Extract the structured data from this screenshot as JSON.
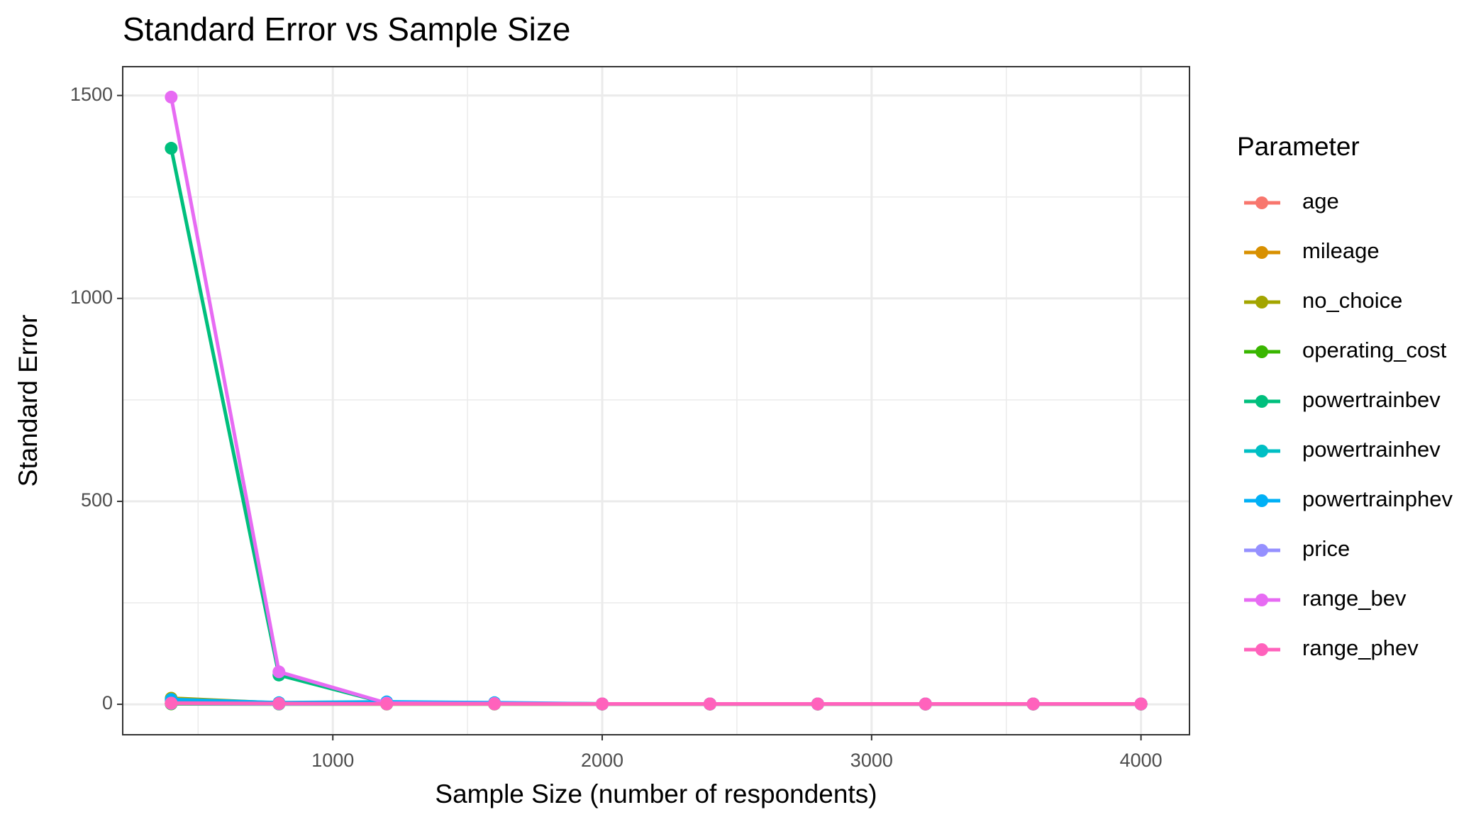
{
  "chart_data": {
    "type": "line",
    "title": "Standard Error vs Sample Size",
    "x_label": "Sample Size (number of respondents)",
    "y_label": "Standard Error",
    "legend_title": "Parameter",
    "legend_position": "right",
    "grid": true,
    "x": [
      400,
      800,
      1200,
      1600,
      2000,
      2400,
      2800,
      3200,
      3600,
      4000
    ],
    "xlim": [
      220,
      4180
    ],
    "xticks": [
      1000,
      2000,
      3000,
      4000
    ],
    "xminor": [
      500,
      1500,
      2500,
      3500
    ],
    "ylim": [
      -75,
      1571
    ],
    "yticks": [
      0,
      500,
      1000,
      1500
    ],
    "yminor": [
      250,
      750,
      1250
    ],
    "series": [
      {
        "name": "age",
        "color": "#F8766D",
        "values": [
          2,
          1,
          1,
          1,
          0.5,
          0.5,
          0.5,
          0.5,
          0.5,
          0.5
        ]
      },
      {
        "name": "mileage",
        "color": "#D89000",
        "values": [
          3,
          1,
          1,
          1,
          0.5,
          0.5,
          0.5,
          0.5,
          0.5,
          0.5
        ]
      },
      {
        "name": "no_choice",
        "color": "#A3A500",
        "values": [
          15,
          3,
          2,
          2,
          1,
          1,
          1,
          1,
          1,
          1
        ]
      },
      {
        "name": "operating_cost",
        "color": "#39B600",
        "values": [
          1,
          0.5,
          0.5,
          0.5,
          0.5,
          0.5,
          0.5,
          0.5,
          0.5,
          0.5
        ]
      },
      {
        "name": "powertrainbev",
        "color": "#00BF7D",
        "values": [
          1370,
          72,
          3,
          2,
          1,
          1,
          1,
          1,
          1,
          1
        ]
      },
      {
        "name": "powertrainhev",
        "color": "#00BFC4",
        "values": [
          8,
          3,
          2,
          2,
          1,
          1,
          1,
          1,
          1,
          1
        ]
      },
      {
        "name": "powertrainphev",
        "color": "#00B0F6",
        "values": [
          12,
          4,
          6,
          4,
          1,
          1,
          1,
          1,
          1,
          1
        ]
      },
      {
        "name": "price",
        "color": "#9590FF",
        "values": [
          2,
          1,
          1,
          1,
          0.5,
          0.5,
          0.5,
          0.5,
          0.5,
          0.5
        ]
      },
      {
        "name": "range_bev",
        "color": "#E76BF3",
        "values": [
          1496,
          80,
          3,
          2,
          1,
          1,
          1,
          1,
          1,
          1
        ]
      },
      {
        "name": "range_phev",
        "color": "#FF62BC",
        "values": [
          3,
          2,
          1,
          1,
          1,
          1,
          1,
          1,
          1,
          1
        ]
      }
    ]
  }
}
